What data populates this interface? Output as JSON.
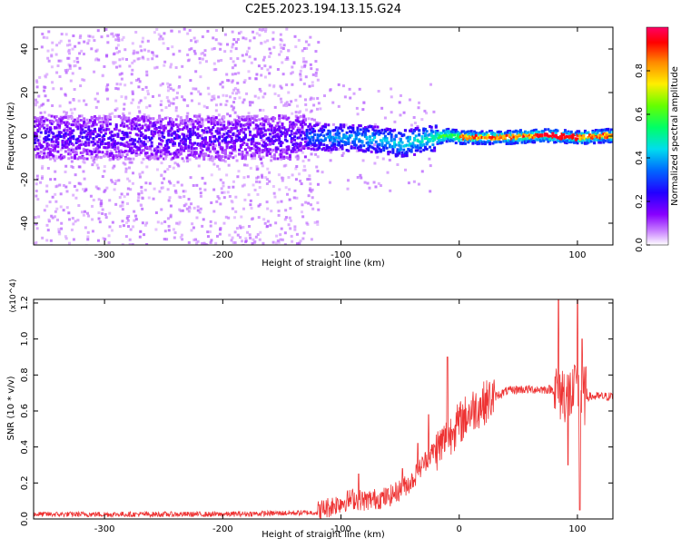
{
  "page": {
    "title": "C2E5.2023.194.13.15.G24"
  },
  "colors": {
    "snr_line": "#ee3333",
    "axis": "#000000",
    "colormap": [
      "#8800ff",
      "#3300ff",
      "#0044ff",
      "#00ccff",
      "#00ff88",
      "#88ff00",
      "#ffdd00",
      "#ff6600",
      "#ff0000",
      "#ff0066"
    ]
  },
  "chart_data": [
    {
      "type": "heatmap",
      "title": "C2E5.2023.194.13.15.G24",
      "xlabel": "Height of straight line (km)",
      "ylabel": "Frequency (Hz)",
      "xlim": [
        -360,
        130
      ],
      "ylim": [
        -50,
        50
      ],
      "xticks": [
        -300,
        -200,
        -100,
        0,
        100
      ],
      "yticks": [
        -40,
        -20,
        0,
        20,
        40
      ],
      "grid": false,
      "note_x_scale": "height",
      "noise_extent": {
        "x_max": -130,
        "freq_range": [
          -50,
          50
        ]
      },
      "core_band_points": [
        {
          "x": -360,
          "f": 0
        },
        {
          "x": -300,
          "f": 0
        },
        {
          "x": -200,
          "f": 0
        },
        {
          "x": -130,
          "f": 0
        },
        {
          "x": -100,
          "f": 0
        },
        {
          "x": -70,
          "f": -1
        },
        {
          "x": -50,
          "f": -3
        },
        {
          "x": -30,
          "f": -1
        },
        {
          "x": -10,
          "f": 1
        },
        {
          "x": 0,
          "f": 0
        },
        {
          "x": 40,
          "f": 0
        },
        {
          "x": 70,
          "f": 1
        },
        {
          "x": 100,
          "f": 0
        },
        {
          "x": 130,
          "f": 1
        }
      ],
      "colorbar": {
        "label": "Normalized spectral amplitude",
        "range": [
          0,
          1
        ],
        "ticks": [
          "0.0",
          "0.2",
          "0.4",
          "0.6",
          "0.8"
        ]
      }
    },
    {
      "type": "line",
      "xlabel": "Height of straight line (km)",
      "ylabel": "SNR (10 * v/v)",
      "y_scale_label": "(x10^4)",
      "xlim": [
        -360,
        130
      ],
      "ylim": [
        0,
        1.22
      ],
      "xticks": [
        -300,
        -200,
        -100,
        0,
        100
      ],
      "yticks": [
        "0.0",
        "0.2",
        "0.4",
        "0.6",
        "0.8",
        "1.0",
        "1.2"
      ],
      "grid": false,
      "series": [
        {
          "x": [
            -360,
            -300,
            -200,
            -120,
            -100,
            -90,
            -80,
            -70,
            -60,
            -50,
            -40,
            -30,
            -20,
            -10,
            0,
            10,
            20,
            30,
            40,
            50,
            60,
            70,
            80,
            90,
            100,
            110,
            120,
            130
          ],
          "y": [
            0.02,
            0.02,
            0.02,
            0.03,
            0.08,
            0.1,
            0.09,
            0.1,
            0.11,
            0.15,
            0.2,
            0.3,
            0.38,
            0.45,
            0.53,
            0.6,
            0.64,
            0.68,
            0.71,
            0.72,
            0.72,
            0.72,
            0.72,
            0.7,
            0.68,
            0.68,
            0.68,
            0.68
          ],
          "spikes": [
            {
              "x": -85,
              "y": 0.25
            },
            {
              "x": -48,
              "y": 0.28
            },
            {
              "x": -35,
              "y": 0.42
            },
            {
              "x": -26,
              "y": 0.58
            },
            {
              "x": -10,
              "y": 0.9
            },
            {
              "x": -5,
              "y": 0.5
            },
            {
              "x": 84,
              "y": 1.22
            },
            {
              "x": 92,
              "y": 0.3
            },
            {
              "x": 98,
              "y": 0.85
            },
            {
              "x": 100,
              "y": 1.22
            },
            {
              "x": 102,
              "y": 0.05
            },
            {
              "x": 104,
              "y": 1.0
            }
          ]
        }
      ]
    }
  ]
}
